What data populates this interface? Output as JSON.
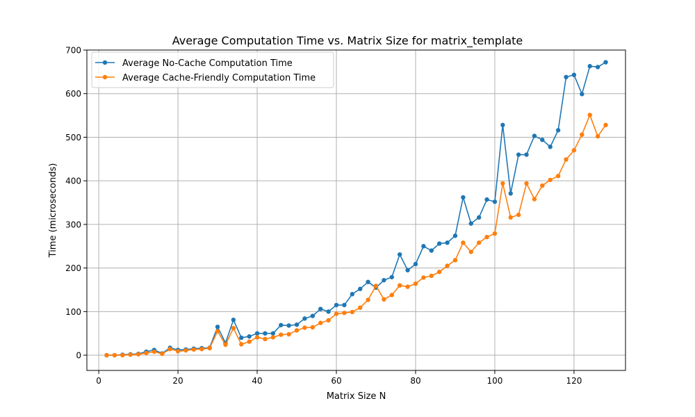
{
  "chart_data": {
    "type": "line",
    "title": "Average Computation Time vs. Matrix Size for matrix_template",
    "xlabel": "Matrix Size N",
    "ylabel": "Time (microseconds)",
    "xlim": [
      -3,
      133
    ],
    "ylim": [
      -35,
      700
    ],
    "xticks": [
      0,
      20,
      40,
      60,
      80,
      100,
      120
    ],
    "yticks": [
      0,
      100,
      200,
      300,
      400,
      500,
      600,
      700
    ],
    "grid": true,
    "legend_position": "top-left",
    "x": [
      2,
      4,
      6,
      8,
      10,
      12,
      14,
      16,
      18,
      20,
      22,
      24,
      26,
      28,
      30,
      32,
      34,
      36,
      38,
      40,
      42,
      44,
      46,
      48,
      50,
      52,
      54,
      56,
      58,
      60,
      62,
      64,
      66,
      68,
      70,
      72,
      74,
      76,
      78,
      80,
      82,
      84,
      86,
      88,
      90,
      92,
      94,
      96,
      98,
      100,
      102,
      104,
      106,
      108,
      110,
      112,
      114,
      116,
      118,
      120,
      122,
      124,
      126,
      128
    ],
    "series": [
      {
        "name": "Average No-Cache Computation Time",
        "color": "#1f77b4",
        "values": [
          0,
          0,
          1,
          2,
          3,
          8,
          12,
          4,
          17,
          12,
          13,
          15,
          16,
          17,
          65,
          28,
          81,
          40,
          43,
          50,
          50,
          50,
          69,
          68,
          70,
          84,
          90,
          106,
          100,
          115,
          115,
          140,
          152,
          168,
          155,
          172,
          179,
          231,
          195,
          209,
          250,
          240,
          256,
          258,
          274,
          362,
          302,
          316,
          357,
          352,
          528,
          371,
          460,
          460,
          503,
          494,
          478,
          516,
          638,
          643,
          599,
          663,
          661,
          672
        ]
      },
      {
        "name": "Average Cache-Friendly Computation Time",
        "color": "#ff7f0e",
        "values": [
          0,
          0,
          0,
          1,
          2,
          5,
          8,
          3,
          14,
          9,
          11,
          13,
          14,
          16,
          55,
          24,
          62,
          25,
          31,
          41,
          37,
          41,
          47,
          48,
          57,
          63,
          64,
          74,
          80,
          95,
          97,
          99,
          109,
          127,
          159,
          128,
          138,
          160,
          157,
          164,
          178,
          182,
          191,
          205,
          218,
          258,
          237,
          258,
          271,
          279,
          394,
          316,
          322,
          394,
          358,
          389,
          402,
          411,
          449,
          470,
          506,
          551,
          502,
          528
        ]
      }
    ]
  }
}
